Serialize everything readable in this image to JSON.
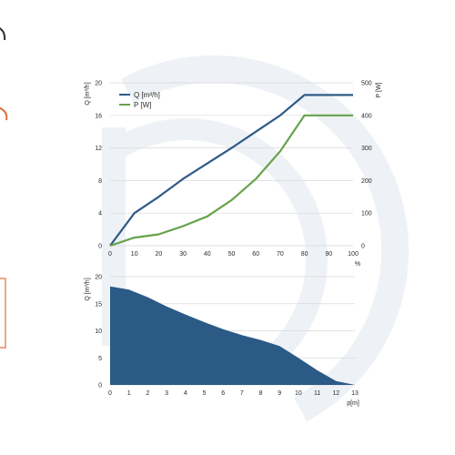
{
  "colors": {
    "q": "#2f5b87",
    "p": "#66a34a",
    "area": "#2b5a86",
    "watermark": "#eef2f6",
    "grid": "#d9d9d9"
  },
  "chart_data": [
    {
      "type": "line",
      "x": [
        0,
        10,
        20,
        30,
        40,
        50,
        60,
        70,
        80,
        90,
        100
      ],
      "xlim": [
        0,
        100
      ],
      "x_unit": "%",
      "left_axis": {
        "label": "Q [m³/h]",
        "ylim": [
          0,
          20
        ],
        "ticks": [
          "0",
          "4",
          "8",
          "12",
          "16",
          "20"
        ]
      },
      "right_axis": {
        "label": "P [W]",
        "ylim": [
          0,
          500
        ],
        "ticks": [
          "0",
          "100",
          "200",
          "300",
          "400",
          "500"
        ]
      },
      "x_ticks": [
        "0",
        "10",
        "20",
        "30",
        "40",
        "50",
        "60",
        "70",
        "80",
        "90",
        "100"
      ],
      "grid": true,
      "legend_position": "top-left",
      "series": [
        {
          "name": "Q [m³/h]",
          "axis": "left",
          "values": [
            0,
            4,
            6,
            8.2,
            10.1,
            12,
            14,
            16,
            18.5,
            18.5,
            18.5
          ]
        },
        {
          "name": "P [W]",
          "axis": "right",
          "values": [
            0,
            25,
            35,
            60,
            90,
            140,
            205,
            290,
            400,
            400,
            400
          ]
        }
      ]
    },
    {
      "type": "area",
      "x": [
        0,
        1,
        2,
        3,
        4,
        5,
        6,
        7,
        8,
        9,
        10,
        11,
        12,
        13
      ],
      "xlim": [
        0,
        13
      ],
      "x_unit": "p[m]",
      "ylabel": "Q [m³/h]",
      "ylim": [
        0,
        20
      ],
      "y_ticks": [
        "0",
        "5",
        "10",
        "15",
        "20"
      ],
      "x_ticks": [
        "0",
        "1",
        "2",
        "3",
        "4",
        "5",
        "6",
        "7",
        "8",
        "9",
        "10",
        "11",
        "12",
        "13"
      ],
      "grid": true,
      "values": [
        18.2,
        17.6,
        16.2,
        14.5,
        13.0,
        11.6,
        10.3,
        9.2,
        8.3,
        7.2,
        5.0,
        2.7,
        0.7,
        0
      ]
    }
  ]
}
